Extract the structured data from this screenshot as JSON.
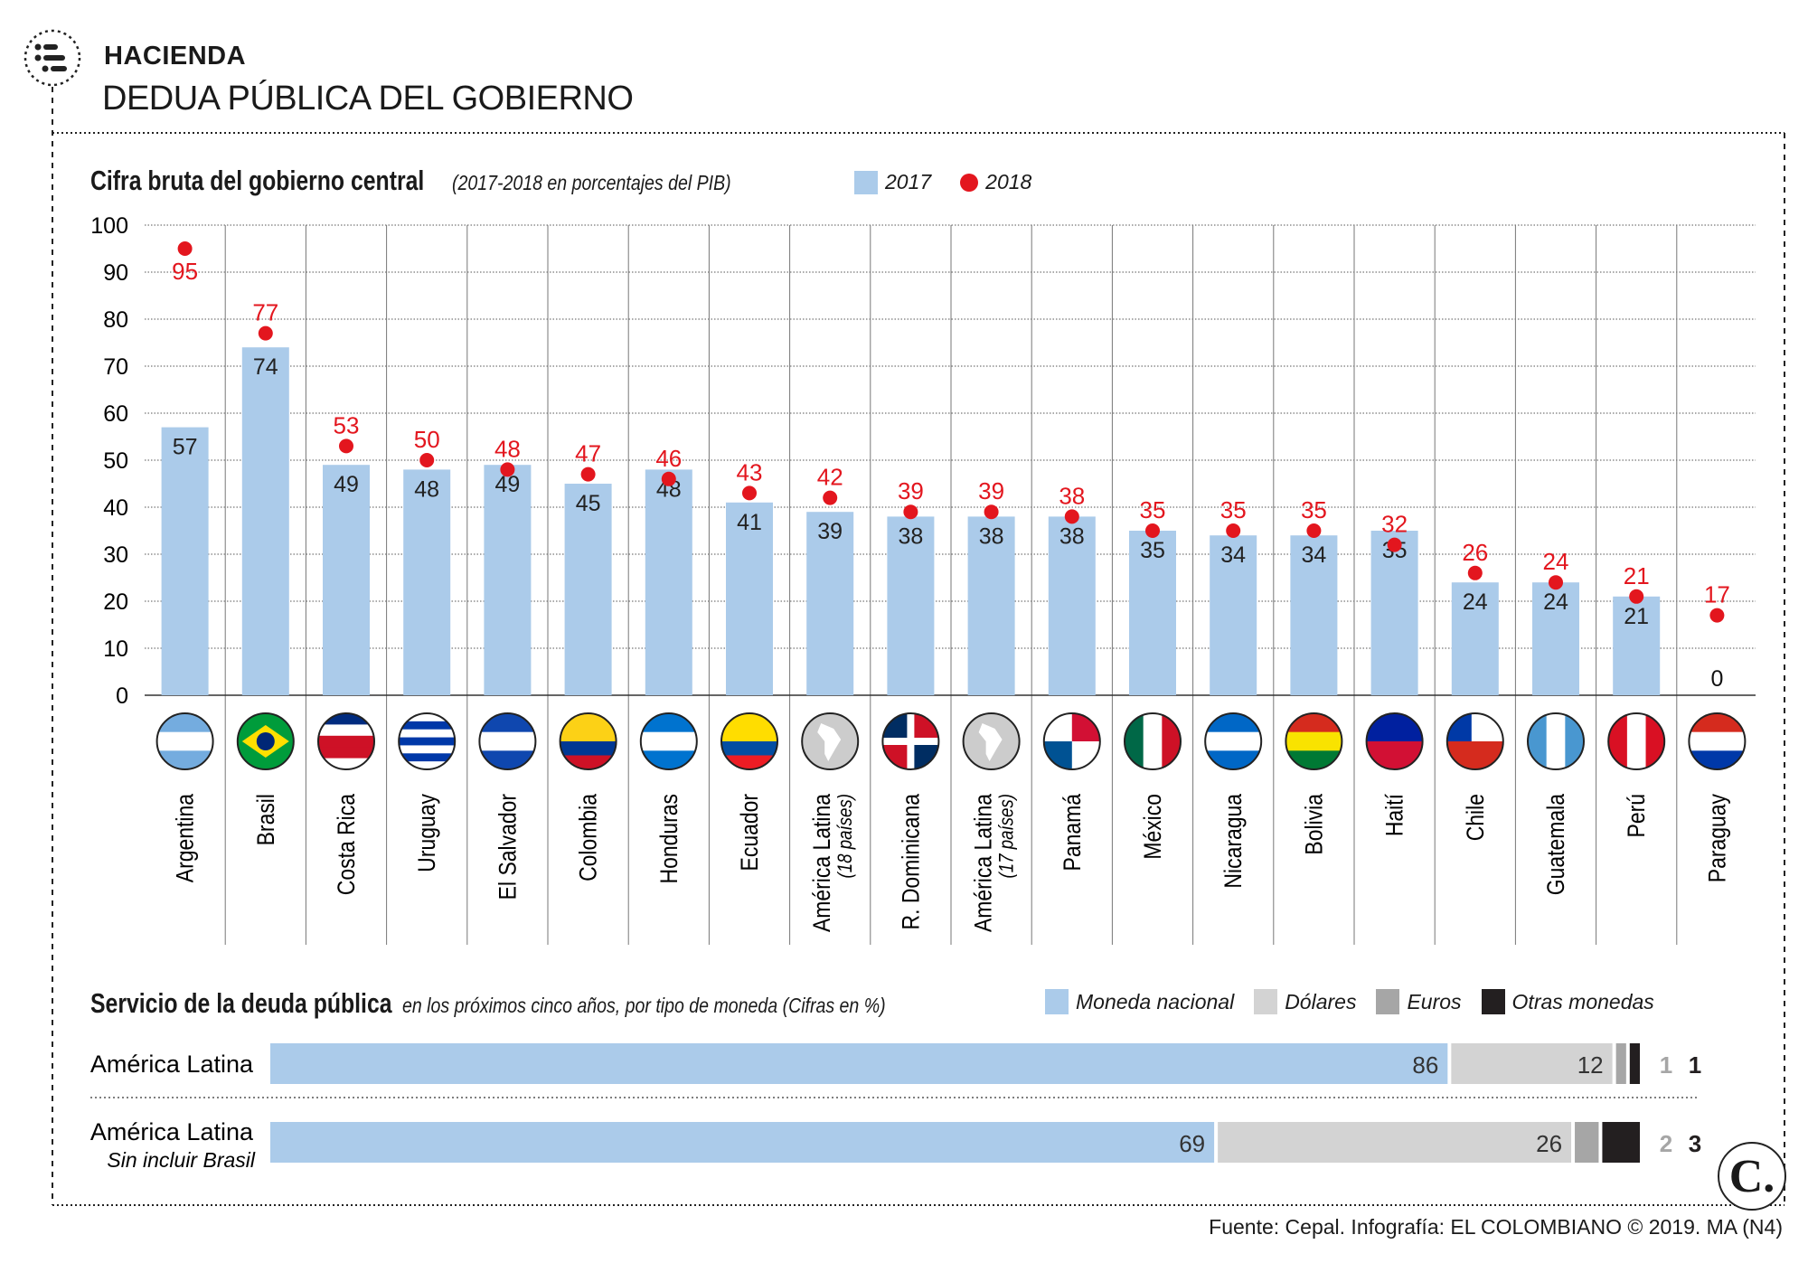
{
  "header": {
    "category": "HACIENDA",
    "title": "DEDUA PÚBLICA DEL GOBIERNO",
    "icon": "list-icon"
  },
  "colors": {
    "bar_2017": "#abcbea",
    "dot_2018": "#e3161e",
    "dollars": "#d3d3d3",
    "euros": "#a6a6a6",
    "others": "#231f20"
  },
  "chart_data": [
    {
      "type": "bar",
      "title": "Cifra bruta del gobierno central",
      "subtitle": "(2017-2018 en porcentajes del PIB)",
      "ylim": [
        0,
        100
      ],
      "yticks": [
        "0",
        "10",
        "20",
        "30",
        "40",
        "50",
        "60",
        "70",
        "80",
        "90",
        "100"
      ],
      "grid": true,
      "legend_placement": "top",
      "categories": [
        "Argentina",
        "Brasil",
        "Costa Rica",
        "Uruguay",
        "El Salvador",
        "Colombia",
        "Honduras",
        "Ecuador",
        "América Latina",
        "R. Dominicana",
        "América Latina",
        "Panamá",
        "México",
        "Nicaragua",
        "Bolivia",
        "Haití",
        "Chile",
        "Guatemala",
        "Perú",
        "Paraguay"
      ],
      "category_notes": [
        "",
        "",
        "",
        "",
        "",
        "",
        "",
        "",
        "(18 países)",
        "",
        "(17 países)",
        "",
        "",
        "",
        "",
        "",
        "",
        "",
        "",
        ""
      ],
      "series": [
        {
          "name": "2017",
          "style": "bar",
          "values": [
            57,
            74,
            49,
            48,
            49,
            45,
            48,
            41,
            39,
            38,
            38,
            38,
            35,
            34,
            34,
            35,
            24,
            24,
            21,
            0
          ]
        },
        {
          "name": "2018",
          "style": "dot",
          "values": [
            95,
            77,
            53,
            50,
            48,
            47,
            46,
            43,
            42,
            39,
            39,
            38,
            35,
            35,
            35,
            32,
            26,
            24,
            21,
            17
          ]
        }
      ]
    },
    {
      "type": "bar",
      "orientation": "horizontal-stacked",
      "title": "Servicio de la deuda pública",
      "subtitle": "en los próximos cinco años, por tipo de moneda (Cifras en %)",
      "legend_placement": "top",
      "series_names": [
        "Moneda nacional",
        "Dólares",
        "Euros",
        "Otras monedas"
      ],
      "rows": [
        {
          "label": "América Latina",
          "sublabel": "",
          "values": [
            86,
            12,
            1,
            1
          ]
        },
        {
          "label": "América Latina",
          "sublabel": "Sin incluir Brasil",
          "values": [
            69,
            26,
            2,
            3
          ]
        }
      ]
    }
  ],
  "footer": {
    "source": "Fuente: Cepal. Infografía: EL COLOMBIANO © 2019. MA (N4)",
    "logo": "C."
  }
}
